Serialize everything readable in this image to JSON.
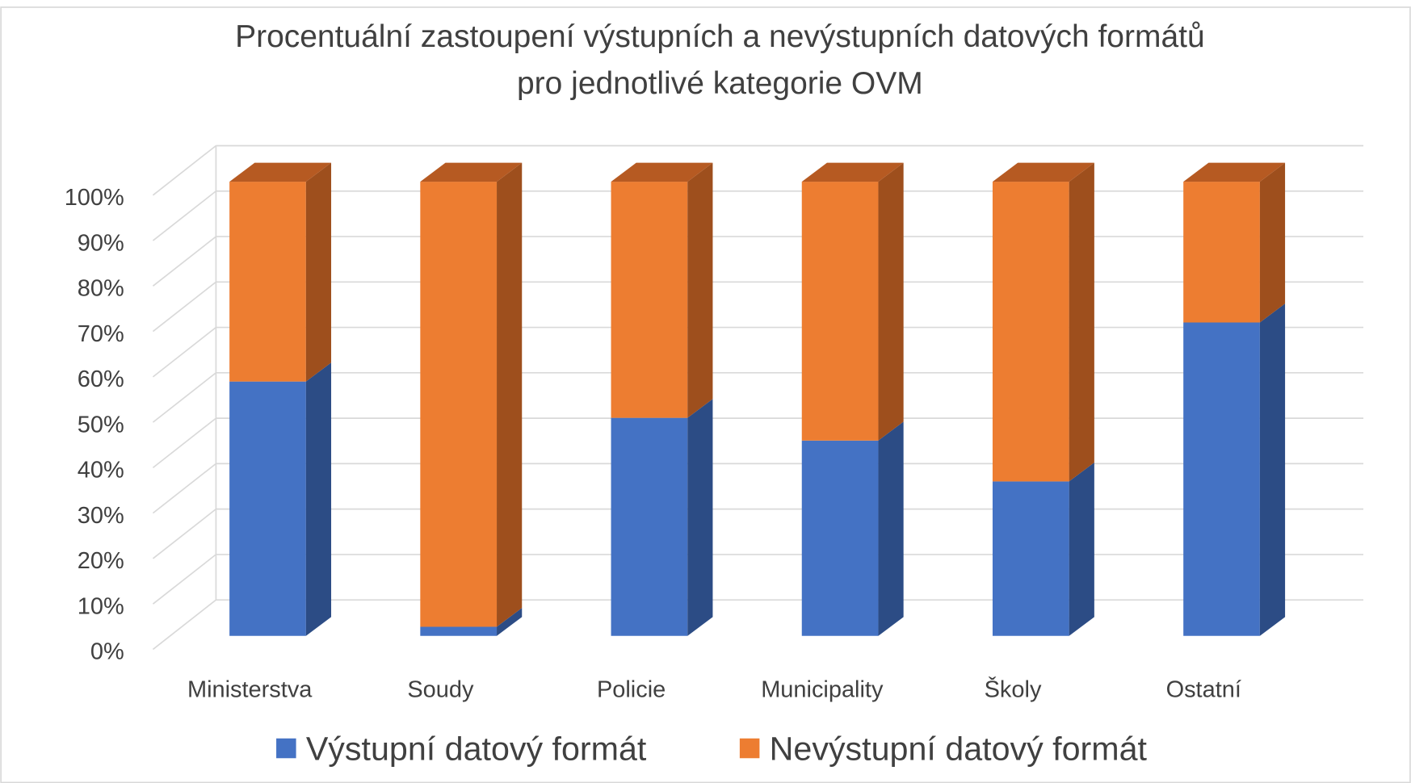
{
  "chart_data": {
    "type": "bar3d_stacked",
    "title": "Procentuální zastoupení výstupních a nevýstupních datových formátů",
    "subtitle": "pro jednotlivé kategorie OVM",
    "categories": [
      "Ministerstva",
      "Soudy",
      "Policie",
      "Municipality",
      "Školy",
      "Ostatní"
    ],
    "series": [
      {
        "name": "Výstupní datový formát",
        "color": "#4472c4",
        "side_color": "#2c4c85",
        "values": [
          56,
          2,
          48,
          43,
          34,
          69
        ]
      },
      {
        "name": "Nevýstupní datový formát",
        "color": "#ed7d31",
        "side_color": "#9e4f1d",
        "values": [
          44,
          98,
          52,
          57,
          66,
          31
        ]
      }
    ],
    "ylim": [
      0,
      100
    ],
    "yticks": [
      {
        "value": 0,
        "label": "0%"
      },
      {
        "value": 10,
        "label": "10%"
      },
      {
        "value": 20,
        "label": "20%"
      },
      {
        "value": 30,
        "label": "30%"
      },
      {
        "value": 40,
        "label": "40%"
      },
      {
        "value": 50,
        "label": "50%"
      },
      {
        "value": 60,
        "label": "60%"
      },
      {
        "value": 70,
        "label": "70%"
      },
      {
        "value": 80,
        "label": "80%"
      },
      {
        "value": 90,
        "label": "90%"
      },
      {
        "value": 100,
        "label": "100%"
      }
    ],
    "grid": true,
    "legend": "bottom"
  }
}
